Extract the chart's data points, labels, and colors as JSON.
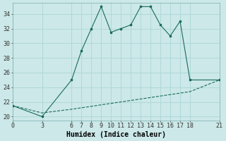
{
  "title": "",
  "xlabel": "Humidex (Indice chaleur)",
  "ylabel": "",
  "background_color": "#cce8e8",
  "grid_color": "#b0d8d8",
  "line_color": "#1a6b5a",
  "x_ticks": [
    0,
    3,
    6,
    7,
    8,
    9,
    10,
    11,
    12,
    13,
    14,
    15,
    16,
    17,
    18,
    21
  ],
  "y_ticks": [
    20,
    22,
    24,
    26,
    28,
    30,
    32,
    34
  ],
  "xlim": [
    0,
    21
  ],
  "ylim": [
    19.5,
    35.5
  ],
  "humidex_x": [
    0,
    3,
    6,
    7,
    8,
    9,
    10,
    11,
    12,
    13,
    14,
    15,
    16,
    17,
    18,
    21
  ],
  "humidex_y": [
    21.5,
    20.0,
    25.0,
    29.0,
    32.0,
    35.0,
    31.5,
    32.0,
    32.5,
    35.0,
    35.0,
    32.5,
    31.0,
    33.0,
    25.0,
    25.0
  ],
  "baseline_x": [
    0,
    3,
    6,
    7,
    8,
    9,
    10,
    11,
    12,
    13,
    14,
    15,
    16,
    17,
    18,
    21
  ],
  "baseline_y": [
    21.5,
    20.5,
    21.0,
    21.2,
    21.4,
    21.6,
    21.8,
    22.0,
    22.2,
    22.4,
    22.6,
    22.8,
    23.0,
    23.2,
    23.4,
    25.0
  ],
  "font_size_label": 7,
  "font_size_tick": 6,
  "title_fontsize": 7
}
